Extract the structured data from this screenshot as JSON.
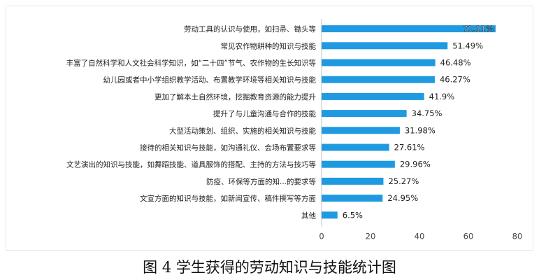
{
  "caption": "图 4 学生获得的劳动知识与技能统计图",
  "colors": {
    "bar": "#1f9ae0",
    "axis": "#bfbfbf",
    "text": "#222222"
  },
  "chart_data": {
    "type": "bar",
    "orientation": "horizontal",
    "title": "",
    "xlabel": "",
    "ylabel": "",
    "xlim": [
      0,
      80
    ],
    "xticks": [
      0,
      20,
      40,
      60,
      80
    ],
    "grid": false,
    "legend": "none",
    "categories": [
      "劳动工具的认识与使用，如扫帚、锄头等",
      "常见农作物耕种的知识与技能",
      "丰富了自然科学和人文社会科学知识，如“二十四”节气、农作物的生长知识等",
      "幼儿园或者中小学组织教学活动、布置教学环境等相关知识与技能",
      "更加了解本土自然环境，挖掘教育资源的能力提升",
      "提升了与儿童沟通与合作的技能",
      "大型活动策划、组织、实施的相关知识与技能",
      "接待的相关知识与技能，如沟通礼仪、会场布置要求等",
      "文艺演出的知识与技能，如舞蹈技能、道具服饰的搭配、主持的方法与技巧等",
      "防疫、环保等方面的知...的要求等",
      "文宣方面的知识与技能，如新闻宣传、稿件撰写等方面",
      "其他"
    ],
    "values": [
      71.11,
      51.49,
      46.48,
      46.27,
      41.9,
      34.75,
      31.98,
      27.61,
      29.96,
      25.27,
      24.95,
      6.5
    ],
    "value_labels": [
      "71.11%",
      "51.49%",
      "46.48%",
      "46.27%",
      "41.9%",
      "34.75%",
      "31.98%",
      "27.61%",
      "29.96%",
      "25.27%",
      "24.95%",
      "6.5%"
    ]
  }
}
